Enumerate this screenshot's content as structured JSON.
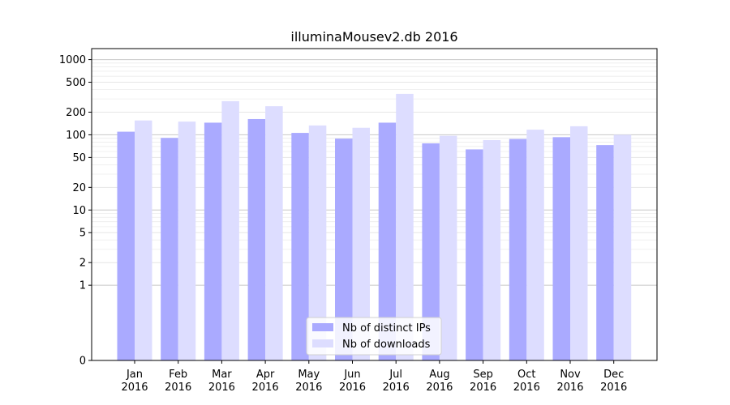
{
  "chart_data": {
    "type": "bar",
    "title": "illuminaMousev2.db 2016",
    "xlabel": "",
    "ylabel": "",
    "yscale": "symlog",
    "ylim": [
      0,
      1400
    ],
    "yticks": [
      0,
      1,
      2,
      5,
      10,
      20,
      50,
      100,
      200,
      500,
      1000
    ],
    "ytick_labels": [
      "0",
      "1",
      "2",
      "5",
      "10",
      "20",
      "50",
      "100",
      "200",
      "500",
      "1000"
    ],
    "categories": [
      [
        "Jan",
        "2016"
      ],
      [
        "Feb",
        "2016"
      ],
      [
        "Mar",
        "2016"
      ],
      [
        "Apr",
        "2016"
      ],
      [
        "May",
        "2016"
      ],
      [
        "Jun",
        "2016"
      ],
      [
        "Jul",
        "2016"
      ],
      [
        "Aug",
        "2016"
      ],
      [
        "Sep",
        "2016"
      ],
      [
        "Oct",
        "2016"
      ],
      [
        "Nov",
        "2016"
      ],
      [
        "Dec",
        "2016"
      ]
    ],
    "series": [
      {
        "name": "Nb of distinct IPs",
        "color": "#aaaaff",
        "values": [
          110,
          91,
          145,
          162,
          106,
          89,
          145,
          77,
          64,
          88,
          93,
          73
        ]
      },
      {
        "name": "Nb of downloads",
        "color": "#ddddff",
        "values": [
          155,
          150,
          280,
          240,
          133,
          124,
          350,
          97,
          85,
          117,
          130,
          100
        ]
      }
    ],
    "grid": true,
    "legend": "bottom-center"
  }
}
